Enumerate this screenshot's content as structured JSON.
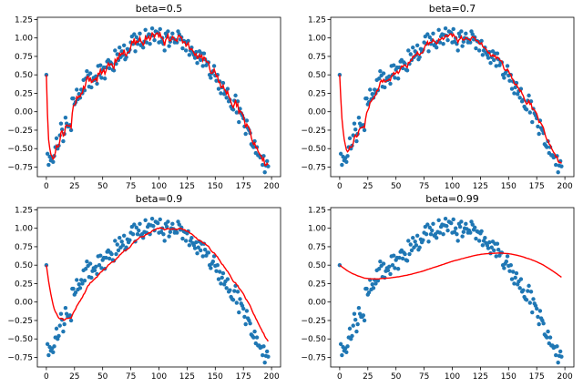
{
  "chart_data": [
    {
      "type": "scatter",
      "title": "beta=0.5",
      "xlabel": "",
      "ylabel": "",
      "xlim": [
        -8,
        208
      ],
      "ylim": [
        -0.88,
        1.28
      ],
      "xticks": [
        "0",
        "25",
        "50",
        "75",
        "100",
        "125",
        "150",
        "175",
        "200"
      ],
      "yticks": [
        "−0.75",
        "−0.50",
        "−0.25",
        "0.00",
        "0.25",
        "0.50",
        "0.75",
        "1.00",
        "1.25"
      ],
      "beta": 0.5,
      "grid": false,
      "legend": "none",
      "series": [
        {
          "kind": "scatter",
          "color": "#1f77b4"
        },
        {
          "kind": "line",
          "color": "#ff0000"
        }
      ]
    },
    {
      "type": "scatter",
      "title": "beta=0.7",
      "xlabel": "",
      "ylabel": "",
      "xlim": [
        -8,
        208
      ],
      "ylim": [
        -0.88,
        1.28
      ],
      "xticks": [
        "0",
        "25",
        "50",
        "75",
        "100",
        "125",
        "150",
        "175",
        "200"
      ],
      "yticks": [
        "−0.75",
        "−0.50",
        "−0.25",
        "0.00",
        "0.25",
        "0.50",
        "0.75",
        "1.00",
        "1.25"
      ],
      "beta": 0.7,
      "grid": false,
      "legend": "none",
      "series": [
        {
          "kind": "scatter",
          "color": "#1f77b4"
        },
        {
          "kind": "line",
          "color": "#ff0000"
        }
      ]
    },
    {
      "type": "scatter",
      "title": "beta=0.9",
      "xlabel": "",
      "ylabel": "",
      "xlim": [
        -8,
        208
      ],
      "ylim": [
        -0.88,
        1.28
      ],
      "xticks": [
        "0",
        "25",
        "50",
        "75",
        "100",
        "125",
        "150",
        "175",
        "200"
      ],
      "yticks": [
        "−0.75",
        "−0.50",
        "−0.25",
        "0.00",
        "0.25",
        "0.50",
        "0.75",
        "1.00",
        "1.25"
      ],
      "beta": 0.9,
      "grid": false,
      "legend": "none",
      "series": [
        {
          "kind": "scatter",
          "color": "#1f77b4"
        },
        {
          "kind": "line",
          "color": "#ff0000"
        }
      ]
    },
    {
      "type": "scatter",
      "title": "beta=0.99",
      "xlabel": "",
      "ylabel": "",
      "xlim": [
        -8,
        208
      ],
      "ylim": [
        -0.88,
        1.28
      ],
      "xticks": [
        "0",
        "25",
        "50",
        "75",
        "100",
        "125",
        "150",
        "175",
        "200"
      ],
      "yticks": [
        "−0.75",
        "−0.50",
        "−0.25",
        "0.00",
        "0.25",
        "0.50",
        "0.75",
        "1.00",
        "1.25"
      ],
      "beta": 0.99,
      "grid": false,
      "legend": "none",
      "series": [
        {
          "kind": "scatter",
          "color": "#1f77b4"
        },
        {
          "kind": "line",
          "color": "#ff0000"
        }
      ]
    }
  ],
  "scatter_x": [
    0,
    1,
    2,
    3,
    4,
    5,
    6,
    7,
    8,
    9,
    10,
    11,
    12,
    13,
    14,
    15,
    16,
    17,
    18,
    19,
    20,
    21,
    22,
    23,
    24,
    25,
    26,
    27,
    28,
    29,
    30,
    31,
    32,
    33,
    34,
    35,
    36,
    37,
    38,
    39,
    40,
    41,
    42,
    43,
    44,
    45,
    46,
    47,
    48,
    49,
    50,
    51,
    52,
    53,
    54,
    55,
    56,
    57,
    58,
    59,
    60,
    61,
    62,
    63,
    64,
    65,
    66,
    67,
    68,
    69,
    70,
    71,
    72,
    73,
    74,
    75,
    76,
    77,
    78,
    79,
    80,
    81,
    82,
    83,
    84,
    85,
    86,
    87,
    88,
    89,
    90,
    91,
    92,
    93,
    94,
    95,
    96,
    97,
    98,
    99,
    100,
    101,
    102,
    103,
    104,
    105,
    106,
    107,
    108,
    109,
    110,
    111,
    112,
    113,
    114,
    115,
    116,
    117,
    118,
    119,
    120,
    121,
    122,
    123,
    124,
    125,
    126,
    127,
    128,
    129,
    130,
    131,
    132,
    133,
    134,
    135,
    136,
    137,
    138,
    139,
    140,
    141,
    142,
    143,
    144,
    145,
    146,
    147,
    148,
    149,
    150,
    151,
    152,
    153,
    154,
    155,
    156,
    157,
    158,
    159,
    160,
    161,
    162,
    163,
    164,
    165,
    166,
    167,
    168,
    169,
    170,
    171,
    172,
    173,
    174,
    175,
    176,
    177,
    178,
    179,
    180,
    181,
    182,
    183,
    184,
    185,
    186,
    187,
    188,
    189,
    190,
    191,
    192,
    193,
    194,
    195,
    196,
    197,
    198,
    199
  ],
  "scatter_y": [
    0.5,
    -0.57,
    -0.72,
    -0.61,
    -0.66,
    -0.63,
    -0.68,
    -0.6,
    -0.48,
    -0.36,
    -0.5,
    -0.46,
    -0.32,
    -0.16,
    -0.24,
    -0.4,
    -0.3,
    -0.08,
    -0.16,
    -0.2,
    -0.2,
    -0.18,
    -0.25,
    0.18,
    0.18,
    0.1,
    0.13,
    0.3,
    0.17,
    0.24,
    0.19,
    0.3,
    0.25,
    0.43,
    0.29,
    0.45,
    0.55,
    0.49,
    0.34,
    0.52,
    0.33,
    0.42,
    0.46,
    0.43,
    0.48,
    0.38,
    0.62,
    0.5,
    0.63,
    0.46,
    0.57,
    0.6,
    0.45,
    0.6,
    0.68,
    0.7,
    0.59,
    0.67,
    0.65,
    0.57,
    0.56,
    0.83,
    0.65,
    0.78,
    0.7,
    0.87,
    0.74,
    0.82,
    0.77,
    0.9,
    0.71,
    0.74,
    0.85,
    0.81,
    0.84,
    0.94,
    1.02,
    0.92,
    1.05,
    0.82,
    1.01,
    0.92,
    0.97,
    1.06,
    0.9,
    0.92,
    0.87,
    0.95,
    1.11,
    0.94,
    1.02,
    1.05,
    0.92,
    1.04,
    1.13,
    1.03,
    0.97,
    1.09,
    1.08,
    1.07,
    0.94,
    1.12,
    0.95,
    1,
    0.92,
    0.83,
    1.06,
    1.02,
    1.09,
    0.89,
    0.95,
    1,
    1.06,
    0.99,
    0.94,
    0.97,
    0.94,
    1.09,
    1.05,
    0.98,
    1.01,
    0.86,
    0.96,
    0.95,
    0.83,
    0.93,
    0.96,
    0.77,
    0.83,
    0.87,
    0.8,
    0.77,
    0.73,
    0.81,
    0.66,
    0.74,
    0.82,
    0.7,
    0.79,
    0.62,
    0.79,
    0.71,
    0.63,
    0.67,
    0.67,
    0.5,
    0.46,
    0.52,
    0.55,
    0.62,
    0.49,
    0.42,
    0.5,
    0.31,
    0.41,
    0.25,
    0.33,
    0.39,
    0.24,
    0.28,
    0.19,
    0.31,
    0.14,
    0.16,
    0.07,
    0.04,
    0.03,
    0.15,
    0.22,
    -0.01,
    0.14,
    -0.14,
    0.04,
    -0.02,
    -0.05,
    -0.09,
    -0.2,
    -0.3,
    -0.12,
    -0.22,
    -0.25,
    -0.29,
    -0.44,
    -0.46,
    -0.48,
    -0.4,
    -0.56,
    -0.48,
    -0.59,
    -0.59,
    -0.62,
    -0.61,
    -0.72,
    -0.6,
    -0.82,
    -0.73,
    -0.67,
    -0.74
  ]
}
